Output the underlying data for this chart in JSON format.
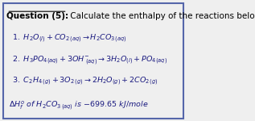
{
  "title_bold": "Question (5):",
  "title_rest": " Calculate the enthalpy of the reactions below",
  "bg_color": "#efefef",
  "border_color": "#5566aa",
  "text_color": "#1a1a80",
  "title_color": "#000000"
}
